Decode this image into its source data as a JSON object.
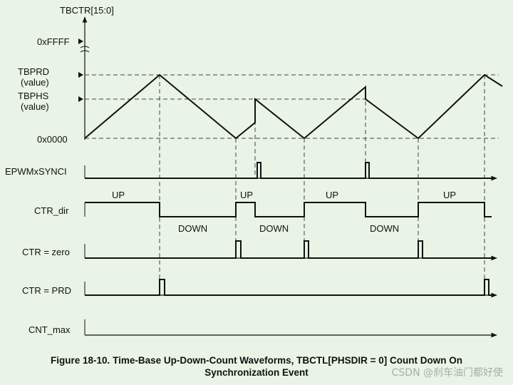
{
  "axis": {
    "y_title": "TBCTR[15:0]",
    "max_label": "0xFFFF",
    "tbprd_label": "TBPRD",
    "tbprd_sub": "(value)",
    "tbphs_label": "TBPHS",
    "tbphs_sub": "(value)",
    "zero_label": "0x0000"
  },
  "signals": {
    "sync": "EPWMxSYNCI",
    "dir": "CTR_dir",
    "zero": "CTR = zero",
    "prd": "CTR = PRD",
    "max": "CNT_max"
  },
  "dir_labels": [
    "UP",
    "DOWN",
    "UP",
    "DOWN",
    "UP",
    "DOWN",
    "UP"
  ],
  "caption": {
    "line1": "Figure 18-10. Time-Base Up-Down-Count Waveforms, TBCTL[PHSDIR = 0] Count Down On",
    "line2": "Synchronization Event"
  },
  "watermark": "CSDN @刹车油门都好使"
}
